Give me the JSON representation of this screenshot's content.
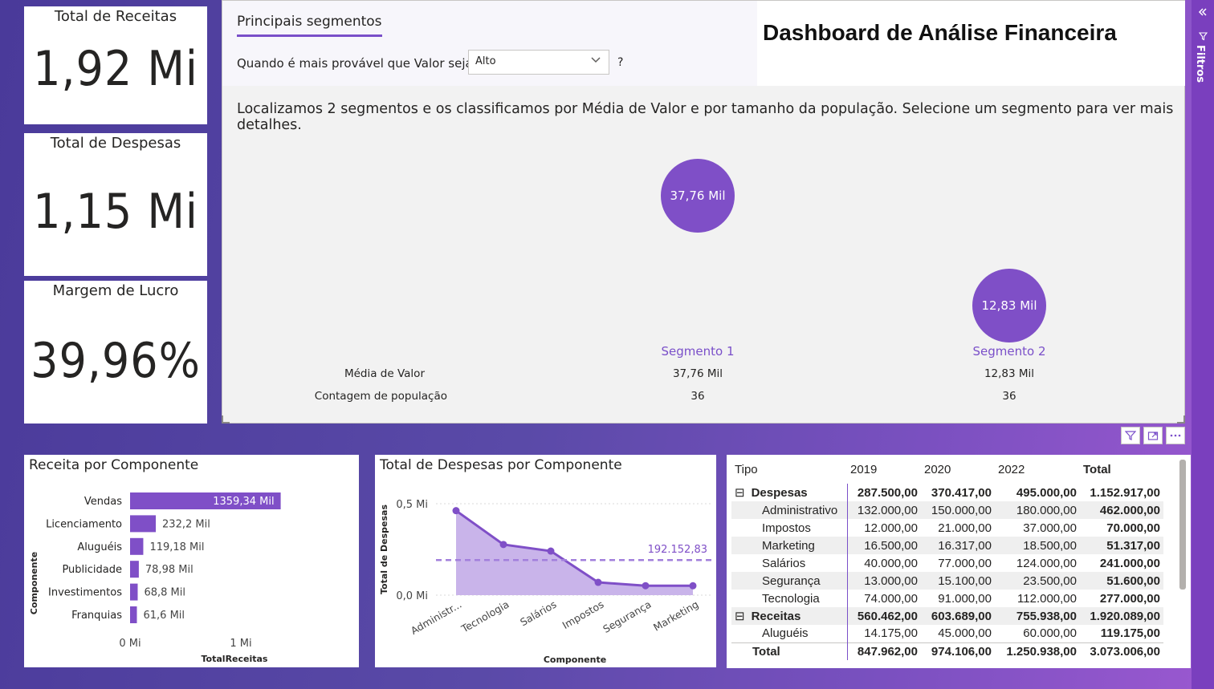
{
  "kpis": [
    {
      "title": "Total de Receitas",
      "value": "1,92 Mi"
    },
    {
      "title": "Total de Despesas",
      "value": "1,15 Mi"
    },
    {
      "title": "Margem de Lucro",
      "value": "39,96%"
    }
  ],
  "segments": {
    "tab_title": "Principais segmentos",
    "question_label": "Quando é mais provável que Valor seja",
    "select_value": "Alto",
    "help": "?",
    "description": "Localizamos 2 segmentos e os classificamos por Média de Valor e por tamanho da população. Selecione um segmento para ver mais detalhes.",
    "row_labels": [
      "Média de Valor",
      "Contagem de população"
    ],
    "items": [
      {
        "name": "Segmento 1",
        "bubble": "37,76 Mil",
        "media": "37,76 Mil",
        "contagem": "36"
      },
      {
        "name": "Segmento 2",
        "bubble": "12,83 Mil",
        "media": "12,83 Mil",
        "contagem": "36"
      }
    ]
  },
  "dashboard_title": "Dashboard de Análise Financeira",
  "rail": {
    "label": "Filtros",
    "icons": [
      "double-chevron-left-icon",
      "filter-icon"
    ]
  },
  "visual_icons": [
    "filter-icon",
    "focus-mode-icon",
    "more-options-icon"
  ],
  "colors": {
    "accent": "#7a4fc9",
    "bubble": "#7f4fc7",
    "rail": "#7a3fbe",
    "area": "#c9b4ea"
  },
  "chart_data": [
    {
      "type": "bar",
      "title": "Receita por Componente",
      "xlabel": "TotalReceitas",
      "ylabel": "Componente",
      "categories": [
        "Vendas",
        "Licenciamento",
        "Aluguéis",
        "Publicidade",
        "Investimentos",
        "Franquias"
      ],
      "values": [
        1359.34,
        232.2,
        119.18,
        78.98,
        68.8,
        61.6
      ],
      "data_labels": [
        "1359,34 Mil",
        "232,2 Mil",
        "119,18 Mil",
        "78,98 Mil",
        "68,8 Mil",
        "61,6 Mil"
      ],
      "xlim": [
        0,
        1440
      ],
      "x_ticks": [
        {
          "value": 0,
          "label": "0 Mi"
        },
        {
          "value": 1000,
          "label": "1 Mi"
        }
      ],
      "unit": "Mil"
    },
    {
      "type": "area",
      "title": "Total de Despesas por Componente",
      "xlabel": "Componente",
      "ylabel": "Total de Despesas",
      "categories": [
        "Administrativo",
        "Tecnologia",
        "Salários",
        "Impostos",
        "Segurança",
        "Marketing"
      ],
      "category_labels": [
        "Administr...",
        "Tecnologia",
        "Salários",
        "Impostos",
        "Segurança",
        "Marketing"
      ],
      "values": [
        462000,
        277000,
        241000,
        70000,
        51600,
        51317
      ],
      "ylim": [
        0,
        550000
      ],
      "y_ticks": [
        {
          "value": 0,
          "label": "0,0 Mi"
        },
        {
          "value": 500000,
          "label": "0,5 Mi"
        }
      ],
      "average_line": {
        "value": 192152.83,
        "label": "192.152,83"
      }
    }
  ],
  "matrix": {
    "headers": [
      "Tipo",
      "2019",
      "2020",
      "2022",
      "Total"
    ],
    "rows": [
      {
        "label": "Despesas",
        "level": 0,
        "expander": "⊟",
        "values": [
          "287.500,00",
          "370.417,00",
          "495.000,00",
          "1.152.917,00"
        ]
      },
      {
        "label": "Administrativo",
        "level": 1,
        "values": [
          "132.000,00",
          "150.000,00",
          "180.000,00",
          "462.000,00"
        ]
      },
      {
        "label": "Impostos",
        "level": 1,
        "values": [
          "12.000,00",
          "21.000,00",
          "37.000,00",
          "70.000,00"
        ]
      },
      {
        "label": "Marketing",
        "level": 1,
        "values": [
          "16.500,00",
          "16.317,00",
          "18.500,00",
          "51.317,00"
        ]
      },
      {
        "label": "Salários",
        "level": 1,
        "values": [
          "40.000,00",
          "77.000,00",
          "124.000,00",
          "241.000,00"
        ]
      },
      {
        "label": "Segurança",
        "level": 1,
        "values": [
          "13.000,00",
          "15.100,00",
          "23.500,00",
          "51.600,00"
        ]
      },
      {
        "label": "Tecnologia",
        "level": 1,
        "values": [
          "74.000,00",
          "91.000,00",
          "112.000,00",
          "277.000,00"
        ]
      },
      {
        "label": "Receitas",
        "level": 0,
        "expander": "⊟",
        "values": [
          "560.462,00",
          "603.689,00",
          "755.938,00",
          "1.920.089,00"
        ]
      },
      {
        "label": "Aluguéis",
        "level": 1,
        "values": [
          "14.175,00",
          "45.000,00",
          "60.000,00",
          "119.175,00"
        ]
      },
      {
        "label": "Total",
        "level": 0,
        "values": [
          "847.962,00",
          "974.106,00",
          "1.250.938,00",
          "3.073.006,00"
        ]
      }
    ]
  }
}
